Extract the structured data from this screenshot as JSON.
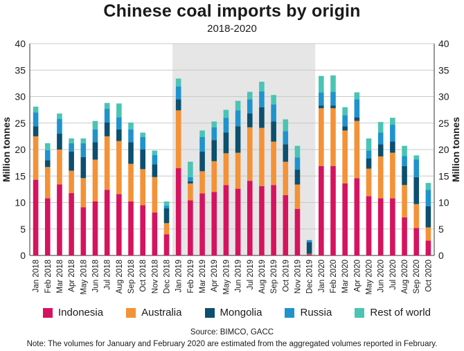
{
  "chart_data": {
    "type": "bar",
    "stacked": true,
    "title": "Chinese coal imports by origin",
    "subtitle": "2018-2020",
    "ylabel": "Million tonnes",
    "ylim": [
      0,
      40
    ],
    "yticks": [
      0,
      5,
      10,
      15,
      20,
      25,
      30,
      35,
      40
    ],
    "grid": true,
    "highlight": {
      "from": "Jan 2019",
      "to": "Dec 2019"
    },
    "categories": [
      "Jan 2018",
      "Feb 2018",
      "Mar 2018",
      "Apr 2018",
      "May 2018",
      "Jun 2018",
      "Jul 2018",
      "Aug 2018",
      "Sep 2018",
      "Oct 2018",
      "Nov 2018",
      "Dec 2018",
      "Jan 2019",
      "Feb 2019",
      "Mar 2019",
      "Apr 2019",
      "May 2019",
      "Jun 2019",
      "Jul 2019",
      "Aug 2019",
      "Sep 2019",
      "Oct 2019",
      "Nov 2019",
      "Dec 2019",
      "Jan 2020",
      "Feb 2020",
      "Mar 2020",
      "Apr 2020",
      "May 2020",
      "Jun 2020",
      "Jul 2020",
      "Aug 2020",
      "Sep 2020",
      "Oct 2020"
    ],
    "series": [
      {
        "name": "Indonesia",
        "color": "#d6135e",
        "values": [
          14.3,
          10.8,
          13.4,
          11.8,
          9.1,
          10.2,
          12.4,
          11.6,
          10.2,
          9.5,
          8.1,
          4.0,
          16.5,
          10.4,
          11.7,
          12.0,
          13.3,
          12.6,
          14.1,
          13.1,
          13.3,
          11.4,
          8.8,
          0.2,
          16.9,
          16.9,
          13.6,
          14.6,
          11.2,
          10.8,
          10.8,
          7.2,
          5.2,
          2.8
        ]
      },
      {
        "name": "Australia",
        "color": "#f39236",
        "values": [
          8.2,
          5.9,
          6.6,
          4.2,
          5.5,
          7.9,
          10.1,
          10.0,
          7.1,
          6.8,
          6.7,
          2.1,
          10.9,
          3.2,
          4.2,
          5.8,
          6.0,
          6.8,
          10.1,
          11.0,
          8.2,
          6.3,
          4.6,
          0.1,
          10.9,
          10.9,
          10.0,
          10.8,
          5.2,
          7.9,
          8.6,
          6.1,
          4.5,
          2.5
        ]
      },
      {
        "name": "Mongolia",
        "color": "#0c4f6e",
        "values": [
          1.9,
          1.3,
          3.0,
          3.6,
          4.0,
          3.3,
          2.6,
          2.2,
          4.1,
          3.7,
          2.4,
          2.8,
          2.1,
          0.4,
          3.7,
          4.0,
          3.9,
          5.0,
          2.6,
          3.9,
          3.8,
          3.3,
          2.8,
          2.2,
          0.5,
          0.5,
          0.8,
          0.7,
          1.9,
          2.3,
          2.1,
          3.6,
          5.1,
          4.0
        ]
      },
      {
        "name": "Russia",
        "color": "#1f93cc",
        "values": [
          2.6,
          1.9,
          2.8,
          1.6,
          2.6,
          2.4,
          2.6,
          2.3,
          2.4,
          2.4,
          1.8,
          0.5,
          2.4,
          0.8,
          2.8,
          2.4,
          2.8,
          3.0,
          2.7,
          3.0,
          3.2,
          2.5,
          2.3,
          0.4,
          2.5,
          2.6,
          2.1,
          3.4,
          1.5,
          2.2,
          3.2,
          1.9,
          3.3,
          3.1
        ]
      },
      {
        "name": "Rest of world",
        "color": "#4bc4b4",
        "values": [
          1.1,
          1.3,
          1.0,
          0.9,
          0.9,
          1.6,
          1.1,
          2.6,
          1.3,
          0.8,
          0.8,
          0.8,
          1.5,
          2.9,
          1.2,
          1.1,
          1.5,
          1.8,
          1.4,
          1.8,
          1.8,
          2.2,
          2.2,
          0.0,
          3.1,
          3.1,
          1.5,
          1.3,
          2.3,
          2.0,
          1.3,
          1.9,
          0.8,
          1.3
        ]
      }
    ],
    "source": "Source: BIMCO, GACC",
    "note": "Note: The volumes for January and February 2020 are estimated from the aggregated volumes reported in February."
  },
  "colors": {
    "highlight_band": "#e6e6e6",
    "grid": "#c8c8c8",
    "axis": "#333333"
  }
}
